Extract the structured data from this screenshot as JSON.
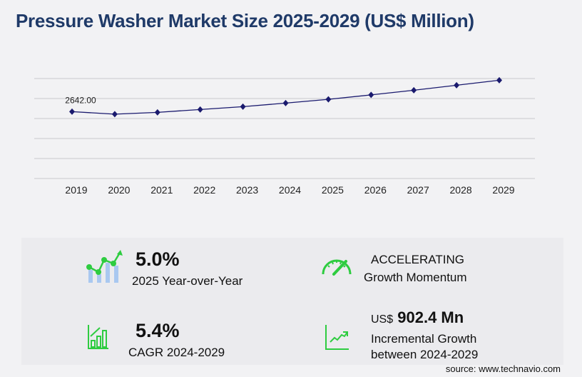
{
  "title": "Pressure Washer Market Size 2025-2029 (US$ Million)",
  "chart_data": {
    "type": "line",
    "title": "Pressure Washer Market Size 2025-2029 (US$ Million)",
    "categories": [
      "2019",
      "2020",
      "2021",
      "2022",
      "2023",
      "2024",
      "2025",
      "2026",
      "2027",
      "2028",
      "2029"
    ],
    "values": [
      2642.0,
      2543,
      2614,
      2727,
      2839,
      2980,
      3129,
      3304,
      3487,
      3685,
      3882
    ],
    "data_labels": {
      "0": "2642.00"
    },
    "ylim": [
      0,
      3950
    ],
    "gridlines": 6,
    "grid": true,
    "line_color": "#1a1a6e",
    "marker": "diamond"
  },
  "stats": {
    "yoy_value": "5.0%",
    "yoy_label": "2025 Year-over-Year",
    "momentum_value": "ACCELERATING",
    "momentum_label": "Growth Momentum",
    "cagr_value": "5.4%",
    "cagr_label": "CAGR 2024-2029",
    "incr_prefix": "US$",
    "incr_value": "902.4 Mn",
    "incr_label1": "Incremental Growth",
    "incr_label2": "between 2024-2029"
  },
  "colors": {
    "accent": "#2ecc40",
    "title": "#1f3a68",
    "bar": "#a9c8f0"
  },
  "source": "source: www.technavio.com"
}
